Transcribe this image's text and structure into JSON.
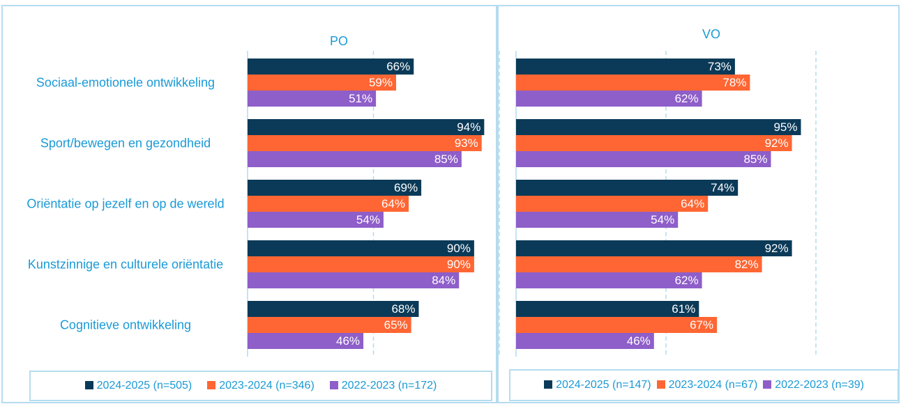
{
  "chart_data": [
    {
      "type": "bar",
      "title": "PO",
      "orientation": "horizontal",
      "categories": [
        "Sociaal-emotionele ontwikkeling",
        "Sport/bewegen en gezondheid",
        "Oriëntatie op jezelf en op de wereld",
        "Kunstzinnige en culturele oriëntatie",
        "Cognitieve ontwikkeling"
      ],
      "xlim": [
        0,
        100
      ],
      "xticks": [
        0,
        50,
        100
      ],
      "grid": true,
      "legend": "bottom",
      "series": [
        {
          "name": "2024-2025 (n=505)",
          "color": "#0b3a58",
          "values": [
            66,
            94,
            69,
            90,
            68
          ],
          "value_labels": [
            "66%",
            "94%",
            "69%",
            "90%",
            "68%"
          ]
        },
        {
          "name": "2023-2024 (n=346)",
          "color": "#ff6633",
          "values": [
            59,
            93,
            64,
            90,
            65
          ],
          "value_labels": [
            "59%",
            "93%",
            "64%",
            "90%",
            "65%"
          ]
        },
        {
          "name": "2022-2023 (n=172)",
          "color": "#8e5ec9",
          "values": [
            51,
            85,
            54,
            84,
            46
          ],
          "value_labels": [
            "51%",
            "85%",
            "54%",
            "84%",
            "46%"
          ]
        }
      ]
    },
    {
      "type": "bar",
      "title": "VO",
      "orientation": "horizontal",
      "xlim": [
        0,
        100
      ],
      "xticks": [
        0,
        50,
        100
      ],
      "grid": true,
      "legend": "bottom",
      "series": [
        {
          "name": "2024-2025 (n=147)",
          "color": "#0b3a58",
          "values": [
            73,
            95,
            74,
            92,
            61
          ],
          "value_labels": [
            "73%",
            "95%",
            "74%",
            "92%",
            "61%"
          ]
        },
        {
          "name": "2023-2024 (n=67)",
          "color": "#ff6633",
          "values": [
            78,
            92,
            64,
            82,
            67
          ],
          "value_labels": [
            "78%",
            "92%",
            "64%",
            "82%",
            "67%"
          ]
        },
        {
          "name": "2022-2023 (n=39)",
          "color": "#8e5ec9",
          "values": [
            62,
            85,
            54,
            62,
            46
          ],
          "value_labels": [
            "62%",
            "85%",
            "54%",
            "62%",
            "46%"
          ]
        }
      ]
    }
  ]
}
